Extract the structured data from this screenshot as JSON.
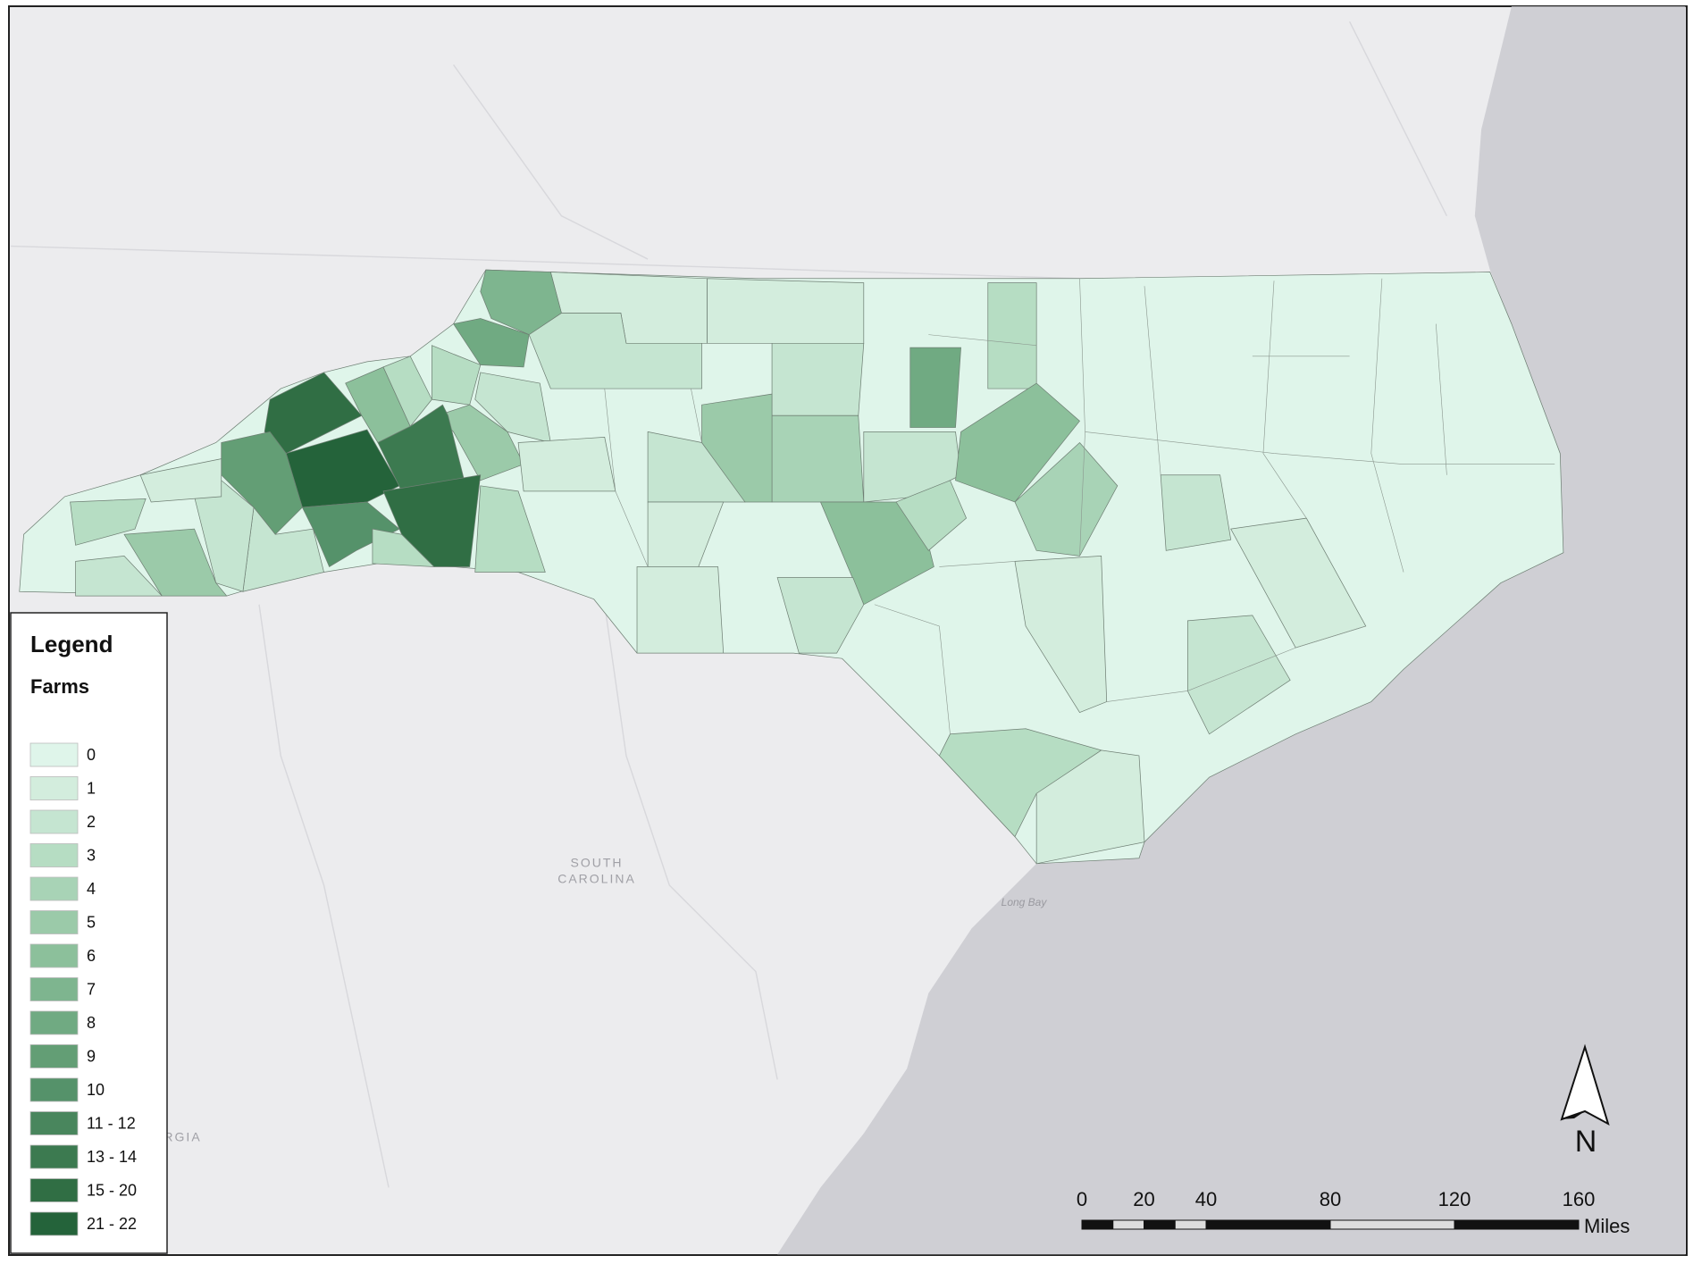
{
  "map": {
    "legend": {
      "title": "Legend",
      "field": "Farms",
      "items": [
        {
          "label": "0",
          "color": "#dff5ea"
        },
        {
          "label": "1",
          "color": "#d3eddd"
        },
        {
          "label": "2",
          "color": "#c5e5d1"
        },
        {
          "label": "3",
          "color": "#b6ddc3"
        },
        {
          "label": "4",
          "color": "#a8d3b6"
        },
        {
          "label": "5",
          "color": "#9bcaa9"
        },
        {
          "label": "6",
          "color": "#8cc09b"
        },
        {
          "label": "7",
          "color": "#7eb58f"
        },
        {
          "label": "8",
          "color": "#70aa82"
        },
        {
          "label": "9",
          "color": "#639e75"
        },
        {
          "label": "10",
          "color": "#55926a"
        },
        {
          "label": "11 - 12",
          "color": "#49865d"
        },
        {
          "label": "13 - 14",
          "color": "#3c7a50"
        },
        {
          "label": "15 - 20",
          "color": "#306e44"
        },
        {
          "label": "21 - 22",
          "color": "#24633a"
        }
      ]
    },
    "scale_bar": {
      "ticks": [
        0,
        20,
        40,
        80,
        120,
        160
      ],
      "unit": "Miles"
    },
    "north_arrow": "N",
    "labels": {
      "state": [
        "SOUTH",
        "CAROLINA"
      ],
      "country": "GEORGIA",
      "water": "Long Bay"
    }
  }
}
